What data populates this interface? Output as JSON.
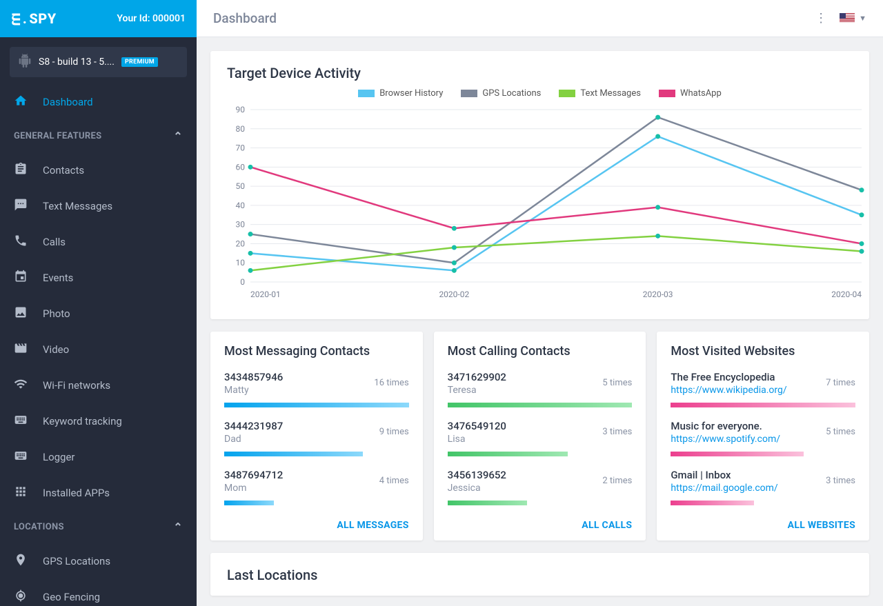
{
  "header": {
    "logo_text": "SPY",
    "your_id_label": "Your Id: 000001",
    "page_title": "Dashboard"
  },
  "device": {
    "name": "S8 - build 13 - 5....",
    "badge": "PREMIUM"
  },
  "nav": {
    "dashboard": "Dashboard",
    "section_general": "GENERAL FEATURES",
    "contacts": "Contacts",
    "text_messages": "Text Messages",
    "calls": "Calls",
    "events": "Events",
    "photo": "Photo",
    "video": "Video",
    "wifi": "Wi-Fi networks",
    "keyword": "Keyword tracking",
    "logger": "Logger",
    "apps": "Installed APPs",
    "section_locations": "LOCATIONS",
    "gps": "GPS Locations",
    "geo": "Geo Fencing"
  },
  "chart": {
    "title": "Target Device Activity",
    "type": "line",
    "x_labels": [
      "2020-01",
      "2020-02",
      "2020-03",
      "2020-04"
    ],
    "ylim": [
      0,
      90
    ],
    "ytick_step": 10,
    "series": [
      {
        "name": "Browser History",
        "color": "#57c5f1",
        "values": [
          15,
          6,
          76,
          35
        ]
      },
      {
        "name": "GPS Locations",
        "color": "#7d8799",
        "values": [
          25,
          10,
          86,
          48
        ]
      },
      {
        "name": "Text Messages",
        "color": "#83d141",
        "values": [
          6,
          18,
          24,
          16
        ]
      },
      {
        "name": "WhatsApp",
        "color": "#e1397d",
        "values": [
          60,
          28,
          39,
          20
        ]
      }
    ],
    "marker_color": "#17bfa8",
    "grid_color": "#e6e8ed",
    "axis_color": "#b7bdc8",
    "label_color": "#7a8294",
    "label_fontsize": 12
  },
  "cards": {
    "messaging": {
      "title": "Most Messaging Contacts",
      "bar_color_class": "blue",
      "items": [
        {
          "num": "3434857946",
          "sub": "Matty",
          "count": "16 times",
          "pct": 100
        },
        {
          "num": "3444231987",
          "sub": "Dad",
          "count": "9 times",
          "pct": 75
        },
        {
          "num": "3487694712",
          "sub": "Mom",
          "count": "4 times",
          "pct": 27
        }
      ],
      "footer": "ALL MESSAGES"
    },
    "calling": {
      "title": "Most Calling Contacts",
      "bar_color_class": "green",
      "items": [
        {
          "num": "3471629902",
          "sub": "Teresa",
          "count": "5 times",
          "pct": 100
        },
        {
          "num": "3476549120",
          "sub": "Lisa",
          "count": "3 times",
          "pct": 65
        },
        {
          "num": "3456139652",
          "sub": "Jessica",
          "count": "2 times",
          "pct": 43
        }
      ],
      "footer": "ALL CALLS"
    },
    "websites": {
      "title": "Most Visited Websites",
      "bar_color_class": "pink",
      "items": [
        {
          "num": "The Free Encyclopedia",
          "link": "https://www.wikipedia.org/",
          "count": "7 times",
          "pct": 100
        },
        {
          "num": "Music for everyone.",
          "link": "https://www.spotify.com/",
          "count": "5 times",
          "pct": 72
        },
        {
          "num": "Gmail | Inbox",
          "link": "https://mail.google.com/",
          "count": "3 times",
          "pct": 45
        }
      ],
      "footer": "ALL WEBSITES"
    }
  },
  "last_locations": {
    "title": "Last Locations"
  }
}
